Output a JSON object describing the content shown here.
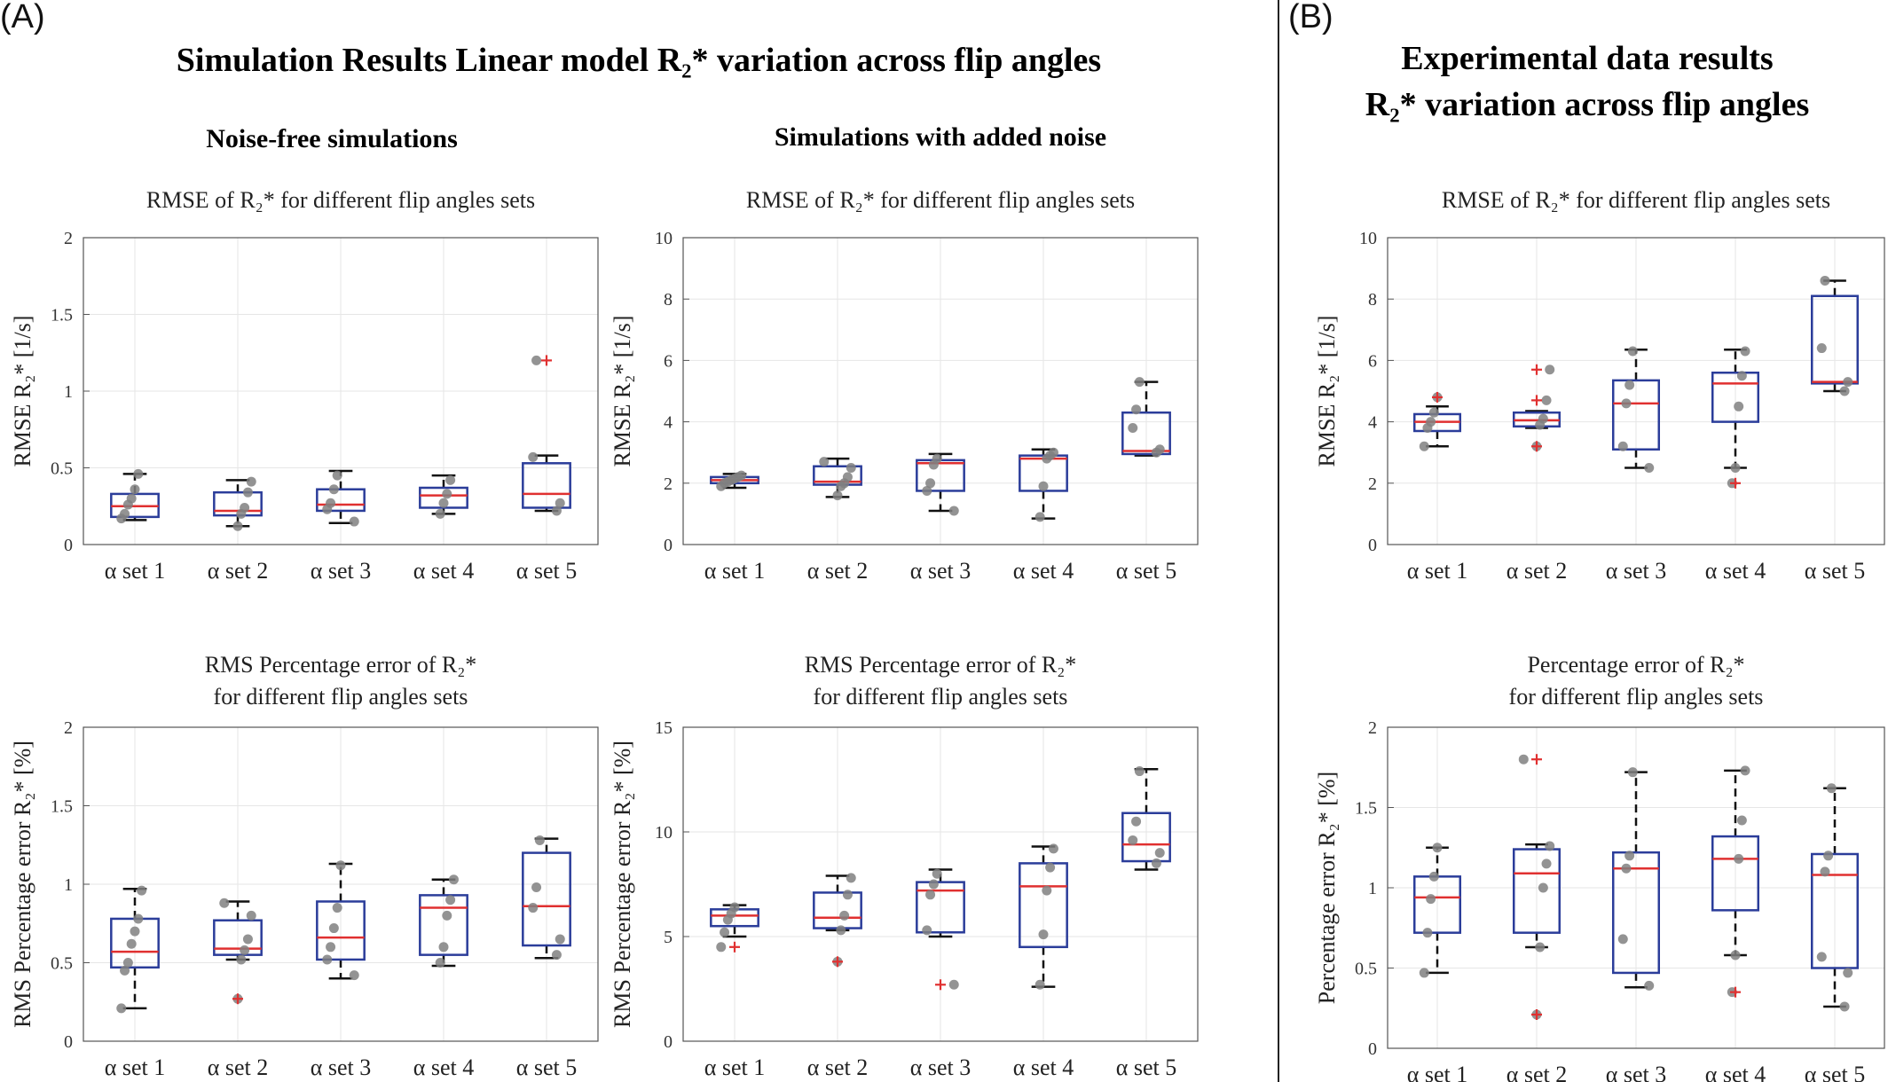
{
  "panel_a": {
    "letter": "(A)",
    "title": "Simulation Results Linear model R₂* variation across flip angles",
    "subtitle_left": "Noise-free simulations",
    "subtitle_right": "Simulations with added noise"
  },
  "panel_b": {
    "letter": "(B)",
    "title_line1": "Experimental data results",
    "title_line2": "R₂* variation across flip angles"
  },
  "colors": {
    "box": "#2b3d9a",
    "median": "#e03030",
    "outlier": "#e03030",
    "point": "#808080",
    "whisker": "#111111",
    "grid": "#e6e6e6"
  },
  "chart_data": [
    {
      "id": "a-rmse-noisefree",
      "type": "box",
      "title_lines": [
        "RMSE of R₂* for different flip angles sets"
      ],
      "ylabel": "RMSE R₂* [1/s]",
      "categories": [
        "α set 1",
        "α set 2",
        "α set 3",
        "α set 4",
        "α set 5"
      ],
      "ylim": [
        0,
        2
      ],
      "yticks": [
        0,
        0.5,
        1,
        1.5,
        2
      ],
      "yticklabels": [
        "0",
        "0.5",
        "1",
        "1.5",
        "2"
      ],
      "grid": true,
      "boxes": [
        {
          "q1": 0.18,
          "median": 0.25,
          "q3": 0.33,
          "whislo": 0.16,
          "whishi": 0.46,
          "outliers": [],
          "points": [
            0.17,
            0.2,
            0.26,
            0.3,
            0.36,
            0.46
          ]
        },
        {
          "q1": 0.19,
          "median": 0.22,
          "q3": 0.34,
          "whislo": 0.12,
          "whishi": 0.42,
          "outliers": [],
          "points": [
            0.12,
            0.2,
            0.24,
            0.34,
            0.41
          ]
        },
        {
          "q1": 0.22,
          "median": 0.26,
          "q3": 0.36,
          "whislo": 0.14,
          "whishi": 0.48,
          "outliers": [],
          "points": [
            0.15,
            0.23,
            0.27,
            0.36,
            0.45
          ]
        },
        {
          "q1": 0.24,
          "median": 0.32,
          "q3": 0.37,
          "whislo": 0.2,
          "whishi": 0.45,
          "outliers": [],
          "points": [
            0.2,
            0.27,
            0.33,
            0.42
          ]
        },
        {
          "q1": 0.24,
          "median": 0.33,
          "q3": 0.53,
          "whislo": 0.22,
          "whishi": 0.58,
          "outliers": [
            1.2
          ],
          "points": [
            0.22,
            0.27,
            0.57,
            1.2
          ]
        }
      ]
    },
    {
      "id": "a-rmse-noise",
      "type": "box",
      "title_lines": [
        "RMSE of R₂* for different flip angles sets"
      ],
      "ylabel": "RMSE R₂* [1/s]",
      "categories": [
        "α set 1",
        "α set 2",
        "α set 3",
        "α set 4",
        "α set 5"
      ],
      "ylim": [
        0,
        10
      ],
      "yticks": [
        0,
        2,
        4,
        6,
        8,
        10
      ],
      "yticklabels": [
        "0",
        "2",
        "4",
        "6",
        "8",
        "10"
      ],
      "grid": true,
      "boxes": [
        {
          "q1": 2.0,
          "median": 2.1,
          "q3": 2.2,
          "whislo": 1.85,
          "whishi": 2.3,
          "outliers": [],
          "points": [
            1.9,
            2.0,
            2.05,
            2.1,
            2.15,
            2.2,
            2.25
          ]
        },
        {
          "q1": 1.95,
          "median": 2.05,
          "q3": 2.55,
          "whislo": 1.55,
          "whishi": 2.8,
          "outliers": [],
          "points": [
            1.6,
            1.9,
            2.0,
            2.2,
            2.5,
            2.7
          ]
        },
        {
          "q1": 1.75,
          "median": 2.65,
          "q3": 2.75,
          "whislo": 1.1,
          "whishi": 2.95,
          "outliers": [],
          "points": [
            1.1,
            1.75,
            2.0,
            2.6,
            2.8
          ]
        },
        {
          "q1": 1.75,
          "median": 2.8,
          "q3": 2.9,
          "whislo": 0.85,
          "whishi": 3.1,
          "outliers": [],
          "points": [
            0.9,
            1.9,
            2.8,
            2.9,
            3.0
          ]
        },
        {
          "q1": 2.95,
          "median": 3.05,
          "q3": 4.3,
          "whislo": 2.9,
          "whishi": 5.3,
          "outliers": [],
          "points": [
            3.0,
            3.1,
            3.8,
            4.4,
            5.3
          ]
        }
      ]
    },
    {
      "id": "a-pct-noisefree",
      "type": "box",
      "title_lines": [
        "RMS Percentage error of R₂*",
        "for different flip angles sets"
      ],
      "ylabel": "RMS Percentage error R₂* [%]",
      "categories": [
        "α set 1",
        "α set 2",
        "α set 3",
        "α set 4",
        "α set 5"
      ],
      "ylim": [
        0,
        2
      ],
      "yticks": [
        0,
        0.5,
        1,
        1.5,
        2
      ],
      "yticklabels": [
        "0",
        "0.5",
        "1",
        "1.5",
        "2"
      ],
      "grid": true,
      "boxes": [
        {
          "q1": 0.47,
          "median": 0.57,
          "q3": 0.78,
          "whislo": 0.21,
          "whishi": 0.97,
          "outliers": [],
          "points": [
            0.21,
            0.45,
            0.5,
            0.62,
            0.7,
            0.78,
            0.96
          ]
        },
        {
          "q1": 0.55,
          "median": 0.59,
          "q3": 0.77,
          "whislo": 0.52,
          "whishi": 0.89,
          "outliers": [
            0.27
          ],
          "points": [
            0.27,
            0.52,
            0.58,
            0.65,
            0.8,
            0.88
          ]
        },
        {
          "q1": 0.52,
          "median": 0.66,
          "q3": 0.89,
          "whislo": 0.4,
          "whishi": 1.13,
          "outliers": [],
          "points": [
            0.42,
            0.52,
            0.6,
            0.72,
            0.85,
            1.12
          ]
        },
        {
          "q1": 0.55,
          "median": 0.85,
          "q3": 0.93,
          "whislo": 0.48,
          "whishi": 1.03,
          "outliers": [],
          "points": [
            0.5,
            0.6,
            0.8,
            0.9,
            1.03
          ]
        },
        {
          "q1": 0.61,
          "median": 0.86,
          "q3": 1.2,
          "whislo": 0.53,
          "whishi": 1.29,
          "outliers": [],
          "points": [
            0.55,
            0.65,
            0.85,
            0.98,
            1.28
          ]
        }
      ]
    },
    {
      "id": "a-pct-noise",
      "type": "box",
      "title_lines": [
        "RMS Percentage error of R₂*",
        "for different flip angles sets"
      ],
      "ylabel": "RMS Percentage error R₂* [%]",
      "categories": [
        "α set 1",
        "α set 2",
        "α set 3",
        "α set 4",
        "α set 5"
      ],
      "ylim": [
        0,
        15
      ],
      "yticks": [
        0,
        5,
        10,
        15
      ],
      "yticklabels": [
        "0",
        "5",
        "10",
        "15"
      ],
      "grid": true,
      "boxes": [
        {
          "q1": 5.5,
          "median": 6.0,
          "q3": 6.3,
          "whislo": 5.0,
          "whishi": 6.5,
          "outliers": [
            4.5
          ],
          "points": [
            4.5,
            5.2,
            5.8,
            6.1,
            6.4
          ]
        },
        {
          "q1": 5.4,
          "median": 5.9,
          "q3": 7.1,
          "whislo": 5.3,
          "whishi": 7.9,
          "outliers": [
            3.8
          ],
          "points": [
            3.8,
            5.3,
            6.0,
            7.0,
            7.8
          ]
        },
        {
          "q1": 5.2,
          "median": 7.2,
          "q3": 7.6,
          "whislo": 5.0,
          "whishi": 8.2,
          "outliers": [
            2.7
          ],
          "points": [
            2.7,
            5.3,
            7.0,
            7.5,
            8.0
          ]
        },
        {
          "q1": 4.5,
          "median": 7.4,
          "q3": 8.5,
          "whislo": 2.6,
          "whishi": 9.3,
          "outliers": [],
          "points": [
            2.7,
            5.1,
            7.2,
            8.3,
            9.2
          ]
        },
        {
          "q1": 8.6,
          "median": 9.4,
          "q3": 10.9,
          "whislo": 8.2,
          "whishi": 13.0,
          "outliers": [],
          "points": [
            8.5,
            9.0,
            9.6,
            10.5,
            12.9
          ]
        }
      ]
    },
    {
      "id": "b-rmse",
      "type": "box",
      "title_lines": [
        "RMSE of R₂* for different flip angles sets"
      ],
      "ylabel": "RMSE R₂* [1/s]",
      "categories": [
        "α set 1",
        "α set 2",
        "α set 3",
        "α set 4",
        "α set 5"
      ],
      "ylim": [
        0,
        10
      ],
      "yticks": [
        0,
        2,
        4,
        6,
        8,
        10
      ],
      "yticklabels": [
        "0",
        "2",
        "4",
        "6",
        "8",
        "10"
      ],
      "grid": true,
      "boxes": [
        {
          "q1": 3.7,
          "median": 4.0,
          "q3": 4.25,
          "whislo": 3.2,
          "whishi": 4.5,
          "outliers": [
            4.8
          ],
          "points": [
            3.2,
            3.8,
            4.0,
            4.3,
            4.8
          ]
        },
        {
          "q1": 3.85,
          "median": 4.05,
          "q3": 4.3,
          "whislo": 3.8,
          "whishi": 4.35,
          "outliers": [
            5.7,
            4.7,
            3.2
          ],
          "points": [
            3.2,
            3.9,
            4.1,
            4.7,
            5.7
          ]
        },
        {
          "q1": 3.1,
          "median": 4.6,
          "q3": 5.35,
          "whislo": 2.5,
          "whishi": 6.35,
          "outliers": [],
          "points": [
            2.5,
            3.2,
            4.6,
            5.2,
            6.3
          ]
        },
        {
          "q1": 4.0,
          "median": 5.25,
          "q3": 5.6,
          "whislo": 2.5,
          "whishi": 6.35,
          "outliers": [
            2.0
          ],
          "points": [
            2.0,
            2.5,
            4.5,
            5.5,
            6.3
          ]
        },
        {
          "q1": 5.25,
          "median": 5.3,
          "q3": 8.1,
          "whislo": 5.0,
          "whishi": 8.6,
          "outliers": [],
          "points": [
            5.0,
            5.3,
            6.4,
            8.6
          ]
        }
      ]
    },
    {
      "id": "b-pct",
      "type": "box",
      "title_lines": [
        "Percentage error of R₂*",
        "for different flip angles sets"
      ],
      "ylabel": "Percentage error R₂* [%]",
      "categories": [
        "α set 1",
        "α set 2",
        "α set 3",
        "α set 4",
        "α set 5"
      ],
      "ylim": [
        0,
        2
      ],
      "yticks": [
        0,
        0.5,
        1,
        1.5,
        2
      ],
      "yticklabels": [
        "0",
        "0.5",
        "1",
        "1.5",
        "2"
      ],
      "grid": true,
      "boxes": [
        {
          "q1": 0.72,
          "median": 0.94,
          "q3": 1.07,
          "whislo": 0.47,
          "whishi": 1.25,
          "outliers": [],
          "points": [
            0.47,
            0.72,
            0.93,
            1.07,
            1.25
          ]
        },
        {
          "q1": 0.72,
          "median": 1.09,
          "q3": 1.24,
          "whislo": 0.63,
          "whishi": 1.27,
          "outliers": [
            1.8,
            0.21
          ],
          "points": [
            0.21,
            0.63,
            1.0,
            1.15,
            1.26,
            1.8
          ]
        },
        {
          "q1": 0.47,
          "median": 1.12,
          "q3": 1.22,
          "whislo": 0.38,
          "whishi": 1.72,
          "outliers": [],
          "points": [
            0.39,
            0.68,
            1.12,
            1.2,
            1.72
          ]
        },
        {
          "q1": 0.86,
          "median": 1.18,
          "q3": 1.32,
          "whislo": 0.58,
          "whishi": 1.73,
          "outliers": [
            0.35
          ],
          "points": [
            0.35,
            0.58,
            1.18,
            1.42,
            1.73
          ]
        },
        {
          "q1": 0.5,
          "median": 1.08,
          "q3": 1.21,
          "whislo": 0.26,
          "whishi": 1.62,
          "outliers": [],
          "points": [
            0.26,
            0.47,
            0.57,
            1.1,
            1.2,
            1.62
          ]
        }
      ]
    }
  ]
}
